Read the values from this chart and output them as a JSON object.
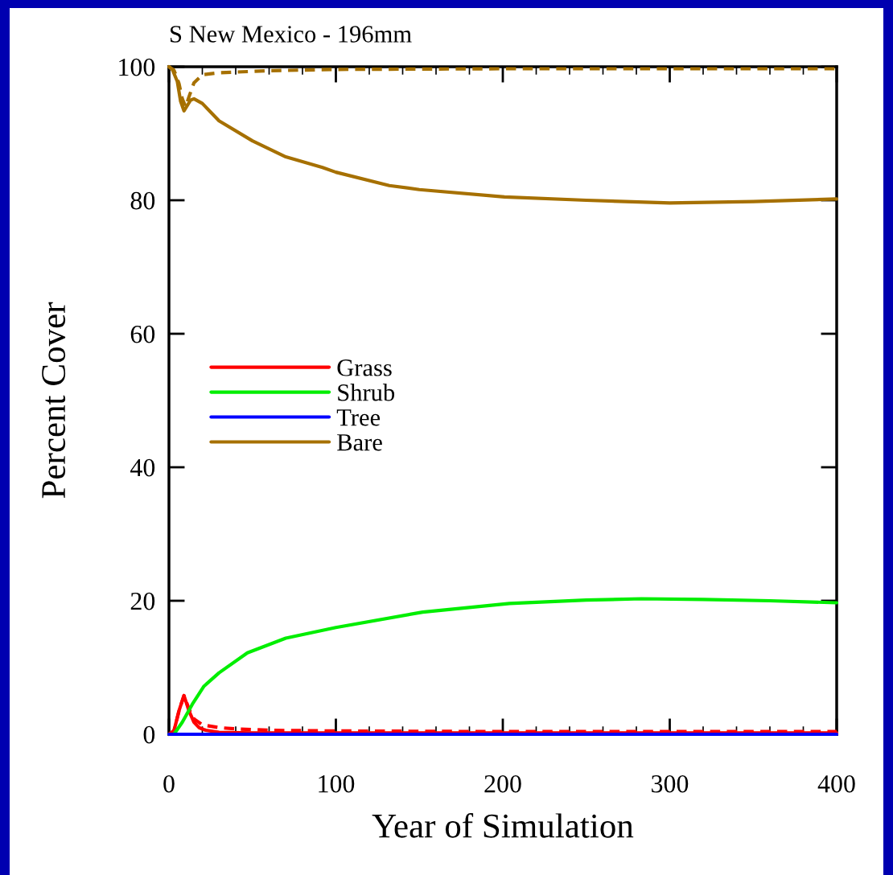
{
  "chart_data": {
    "type": "line",
    "title": "S New Mexico - 196mm",
    "xlabel": "Year of Simulation",
    "ylabel": "Percent Cover",
    "xlim": [
      0,
      400
    ],
    "ylim": [
      0,
      100
    ],
    "xticks": [
      0,
      100,
      200,
      300,
      400
    ],
    "yticks": [
      0,
      20,
      40,
      60,
      80,
      100
    ],
    "grid": false,
    "legend": "left",
    "marker": "none",
    "series": [
      {
        "name": "Grass",
        "color": "#ff0000",
        "line_style": "solid",
        "x": [
          0,
          3,
          6,
          9,
          12,
          15,
          18,
          22,
          30,
          50,
          100,
          200,
          300,
          400
        ],
        "values": [
          0,
          0.5,
          3.5,
          5.8,
          3.5,
          1.8,
          1.0,
          0.6,
          0.3,
          0.2,
          0.2,
          0.2,
          0.2,
          0.2
        ]
      },
      {
        "color": "#ff0000",
        "line_style": "dashed",
        "x": [
          0,
          3,
          6,
          9,
          12,
          15,
          20,
          30,
          40,
          60,
          100,
          200,
          300,
          400
        ],
        "values": [
          0,
          0.5,
          3.5,
          5.8,
          3.8,
          2.3,
          1.4,
          1.0,
          0.8,
          0.6,
          0.5,
          0.4,
          0.4,
          0.4
        ]
      },
      {
        "name": "Shrub",
        "color": "#00ee00",
        "x": [
          0,
          3,
          8,
          14,
          21,
          30,
          47,
          70,
          100,
          152,
          204,
          250,
          283,
          320,
          360,
          400
        ],
        "values": [
          0,
          0,
          1.8,
          4.5,
          7.2,
          9.2,
          12.2,
          14.4,
          16.0,
          18.3,
          19.6,
          20.1,
          20.3,
          20.2,
          20.0,
          19.7
        ]
      },
      {
        "name": "Tree",
        "color": "#0000ff",
        "x": [
          0,
          100,
          200,
          300,
          400
        ],
        "values": [
          0,
          0,
          0,
          0,
          0
        ]
      },
      {
        "name": "Bare",
        "color": "#a67000",
        "line_style": "solid",
        "x": [
          0,
          2,
          5,
          7,
          9,
          11,
          13,
          15,
          20,
          30,
          50,
          70,
          92,
          100,
          132,
          150,
          201,
          250,
          300,
          350,
          400
        ],
        "values": [
          100,
          99.6,
          97.8,
          94.8,
          93.4,
          94.2,
          95.0,
          95.2,
          94.5,
          91.9,
          88.9,
          86.5,
          84.9,
          84.2,
          82.2,
          81.6,
          80.5,
          80.0,
          79.6,
          79.8,
          80.2
        ]
      },
      {
        "color": "#a67000",
        "line_style": "dashed",
        "x": [
          0,
          3,
          6,
          8,
          10,
          12,
          15,
          20,
          30,
          40,
          60,
          100,
          200,
          300,
          400
        ],
        "values": [
          100,
          99.5,
          97.5,
          95.2,
          94.0,
          95.5,
          97.6,
          98.8,
          99.1,
          99.2,
          99.4,
          99.6,
          99.7,
          99.7,
          99.7
        ]
      }
    ]
  }
}
